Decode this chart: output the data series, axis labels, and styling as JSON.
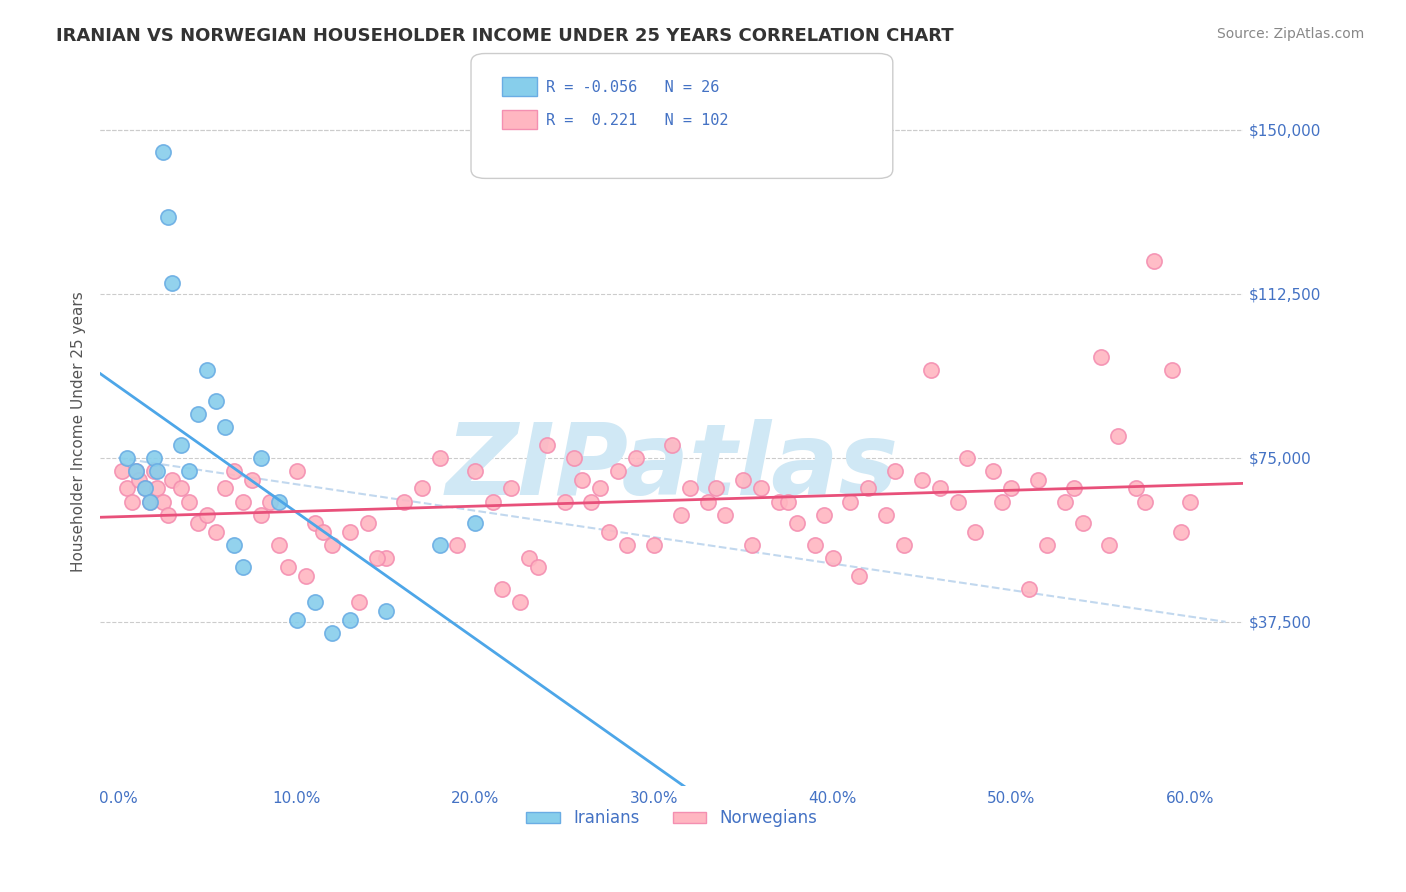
{
  "title": "IRANIAN VS NORWEGIAN HOUSEHOLDER INCOME UNDER 25 YEARS CORRELATION CHART",
  "source": "Source: ZipAtlas.com",
  "ylabel": "Householder Income Under 25 years",
  "xlabel_ticks": [
    "0.0%",
    "10.0%",
    "20.0%",
    "30.0%",
    "40.0%",
    "50.0%",
    "60.0%"
  ],
  "xlabel_vals": [
    0.0,
    10.0,
    20.0,
    30.0,
    40.0,
    50.0,
    60.0
  ],
  "ytick_labels": [
    "$37,500",
    "$75,000",
    "$112,500",
    "$150,000"
  ],
  "ytick_vals": [
    37500,
    75000,
    112500,
    150000
  ],
  "ylim": [
    0,
    162000
  ],
  "xlim": [
    -1,
    63
  ],
  "iranian_color": "#87CEEB",
  "norwegian_color": "#FFB6C1",
  "iranian_edge": "#6aade4",
  "norwegian_edge": "#f48fb1",
  "regression_iranian_color": "#4da6e8",
  "regression_norwegian_color": "#e8507a",
  "background_color": "#ffffff",
  "grid_color": "#cccccc",
  "watermark_text": "ZIPatlas",
  "watermark_color": "#d0e8f5",
  "title_color": "#333333",
  "axis_label_color": "#4472c4",
  "legend_R_color": "#4472c4",
  "legend_iranian_R": "-0.056",
  "legend_iranian_N": "26",
  "legend_norwegian_R": "0.221",
  "legend_norwegian_N": "102",
  "iranian_x": [
    0.5,
    1.0,
    1.5,
    1.8,
    2.0,
    2.2,
    2.5,
    2.8,
    3.0,
    3.5,
    4.0,
    4.5,
    5.0,
    5.5,
    6.0,
    6.5,
    7.0,
    8.0,
    9.0,
    10.0,
    11.0,
    12.0,
    13.0,
    15.0,
    18.0,
    20.0
  ],
  "iranian_y": [
    75000,
    72000,
    68000,
    65000,
    75000,
    72000,
    145000,
    130000,
    115000,
    78000,
    72000,
    85000,
    95000,
    88000,
    82000,
    55000,
    50000,
    75000,
    65000,
    38000,
    42000,
    35000,
    38000,
    40000,
    55000,
    60000
  ],
  "norwegian_x": [
    0.2,
    0.5,
    0.8,
    1.0,
    1.2,
    1.5,
    1.8,
    2.0,
    2.2,
    2.5,
    2.8,
    3.0,
    3.5,
    4.0,
    4.5,
    5.0,
    5.5,
    6.0,
    6.5,
    7.0,
    7.5,
    8.0,
    8.5,
    9.0,
    9.5,
    10.0,
    11.0,
    12.0,
    13.0,
    14.0,
    15.0,
    16.0,
    17.0,
    18.0,
    19.0,
    20.0,
    21.0,
    22.0,
    23.0,
    24.0,
    25.0,
    26.0,
    27.0,
    28.0,
    29.0,
    30.0,
    31.0,
    32.0,
    33.0,
    34.0,
    35.0,
    36.0,
    37.0,
    38.0,
    39.0,
    40.0,
    41.0,
    42.0,
    43.0,
    44.0,
    45.0,
    46.0,
    47.0,
    48.0,
    49.0,
    50.0,
    51.0,
    52.0,
    53.0,
    54.0,
    55.0,
    56.0,
    57.0,
    58.0,
    59.0,
    60.0,
    10.5,
    11.5,
    13.5,
    14.5,
    21.5,
    22.5,
    23.5,
    25.5,
    26.5,
    27.5,
    28.5,
    31.5,
    33.5,
    35.5,
    37.5,
    39.5,
    41.5,
    43.5,
    45.5,
    47.5,
    49.5,
    51.5,
    53.5,
    55.5,
    57.5,
    59.5
  ],
  "norwegian_y": [
    72000,
    68000,
    65000,
    72000,
    70000,
    68000,
    65000,
    72000,
    68000,
    65000,
    62000,
    70000,
    68000,
    65000,
    60000,
    62000,
    58000,
    68000,
    72000,
    65000,
    70000,
    62000,
    65000,
    55000,
    50000,
    72000,
    60000,
    55000,
    58000,
    60000,
    52000,
    65000,
    68000,
    75000,
    55000,
    72000,
    65000,
    68000,
    52000,
    78000,
    65000,
    70000,
    68000,
    72000,
    75000,
    55000,
    78000,
    68000,
    65000,
    62000,
    70000,
    68000,
    65000,
    60000,
    55000,
    52000,
    65000,
    68000,
    62000,
    55000,
    70000,
    68000,
    65000,
    58000,
    72000,
    68000,
    45000,
    55000,
    65000,
    60000,
    98000,
    80000,
    68000,
    120000,
    95000,
    65000,
    48000,
    58000,
    42000,
    52000,
    45000,
    42000,
    50000,
    75000,
    65000,
    58000,
    55000,
    62000,
    68000,
    55000,
    65000,
    62000,
    48000,
    72000,
    95000,
    75000,
    65000,
    70000,
    68000,
    55000,
    65000,
    58000
  ]
}
